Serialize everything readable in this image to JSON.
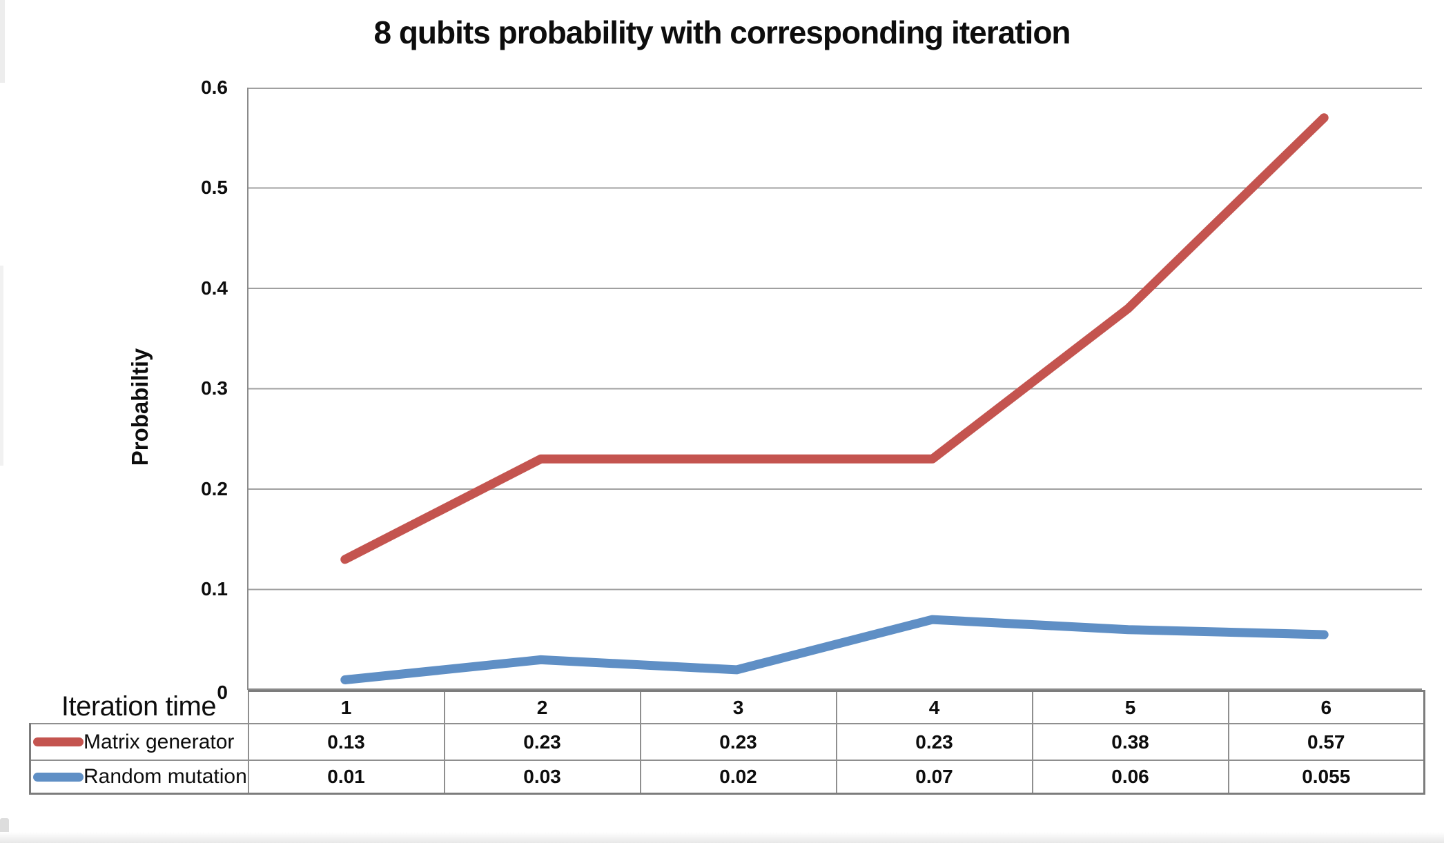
{
  "chart_data": {
    "type": "line",
    "title": "8 qubits probability with corresponding iteration",
    "xlabel": "Iteration time",
    "ylabel": "Probabiltiy",
    "categories": [
      "1",
      "2",
      "3",
      "4",
      "5",
      "6"
    ],
    "series": [
      {
        "name": "Matrix generator",
        "color": "#C4544F",
        "values": [
          0.13,
          0.23,
          0.23,
          0.23,
          0.38,
          0.57
        ]
      },
      {
        "name": "Random mutation",
        "color": "#5F8FC5",
        "values": [
          0.01,
          0.03,
          0.02,
          0.07,
          0.06,
          0.055
        ]
      }
    ],
    "ylim": [
      0,
      0.6
    ],
    "ytick_labels": [
      "0.6",
      "0.5",
      "0.4",
      "0.3",
      "0.2",
      "0.1",
      "0"
    ],
    "grid": true,
    "legend_position": "table-left-column"
  },
  "table": {
    "corner_label": "Iteration time",
    "columns": [
      "1",
      "2",
      "3",
      "4",
      "5",
      "6"
    ],
    "rows": [
      {
        "label": "Matrix generator",
        "values": [
          "0.13",
          "0.23",
          "0.23",
          "0.23",
          "0.38",
          "0.57"
        ]
      },
      {
        "label": "Random mutation",
        "values": [
          "0.01",
          "0.03",
          "0.02",
          "0.07",
          "0.06",
          "0.055"
        ]
      }
    ]
  },
  "colors": {
    "series_red": "#C4544F",
    "series_blue": "#5F8FC5",
    "gridline": "#a0a0a0",
    "axis": "#8a8a8a",
    "table_border": "#8f8f8f",
    "text": "#0d0d0d",
    "background": "#ffffff"
  }
}
